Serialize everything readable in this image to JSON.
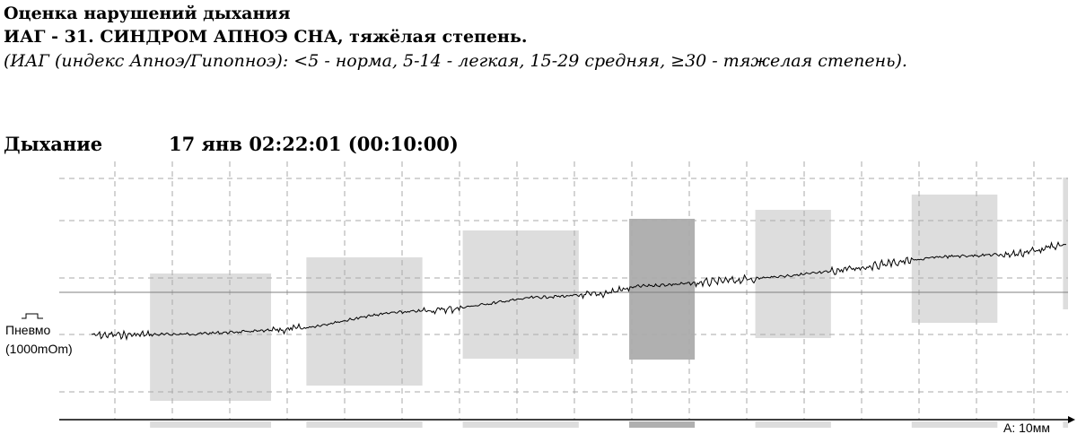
{
  "header": {
    "title": "Оценка нарушений дыхания",
    "diagnosis_prefix": "ИАГ - ",
    "diagnosis_value": "31",
    "diagnosis_text": ". СИНДРОМ АПНОЭ СНА, тяжёлая степень.",
    "legend_note": "(ИАГ (индекс Апноэ/Гипопноэ): <5 - норма, 5-14 - легкая, 15-29 средняя, ≥30 - тяжелая степень)."
  },
  "section": {
    "title": "Дыхание",
    "timestamp": "17 янв 02:22:01 (00:10:00)"
  },
  "chart_data": {
    "type": "line",
    "channel": "Пневмо",
    "scale_label": "(1000mOm)",
    "amplitude_label": "А: 10мм",
    "grid": true,
    "events": [
      {
        "start": 0.09,
        "end": 0.21,
        "shade": "light"
      },
      {
        "start": 0.245,
        "end": 0.36,
        "shade": "light"
      },
      {
        "start": 0.4,
        "end": 0.515,
        "shade": "light"
      },
      {
        "start": 0.565,
        "end": 0.63,
        "shade": "dark"
      },
      {
        "start": 0.69,
        "end": 0.765,
        "shade": "light"
      },
      {
        "start": 0.845,
        "end": 0.93,
        "shade": "light"
      },
      {
        "start": 0.995,
        "end": 1.0,
        "shade": "light"
      }
    ],
    "trend": [
      [
        0.0,
        0.0
      ],
      [
        0.1,
        0.02
      ],
      [
        0.19,
        0.08
      ],
      [
        0.22,
        0.12
      ],
      [
        0.3,
        0.35
      ],
      [
        0.37,
        0.42
      ],
      [
        0.45,
        0.6
      ],
      [
        0.52,
        0.65
      ],
      [
        0.56,
        0.78
      ],
      [
        0.64,
        0.85
      ],
      [
        0.75,
        1.0
      ],
      [
        0.82,
        1.15
      ],
      [
        0.87,
        1.25
      ],
      [
        0.95,
        1.3
      ],
      [
        1.0,
        1.45
      ]
    ],
    "colors": {
      "light": "#dddddd",
      "dark": "#b0b0b0",
      "trace": "#000000",
      "grid": "#aaaaaa"
    }
  }
}
